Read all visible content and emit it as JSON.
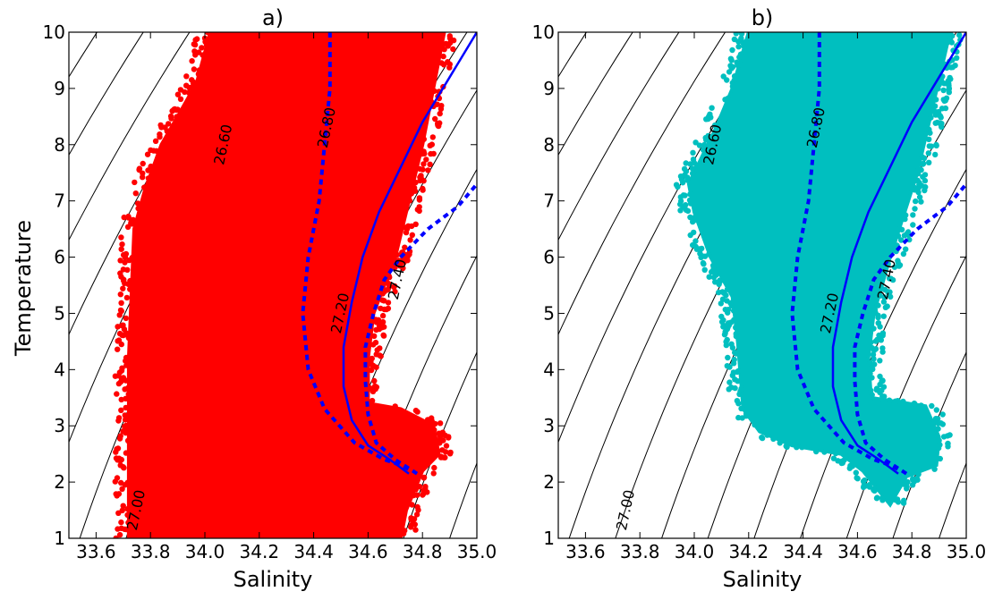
{
  "figure": {
    "ylabel": "Temperature",
    "xlabel": "Salinity"
  },
  "chart_data": [
    {
      "type": "scatter",
      "title": "a)",
      "xlabel": "Salinity",
      "ylabel": "Temperature",
      "xlim": [
        33.5,
        35.0
      ],
      "ylim": [
        1,
        10
      ],
      "xticks": [
        "33.6",
        "33.8",
        "34.0",
        "34.2",
        "34.4",
        "34.6",
        "34.8",
        "35.0"
      ],
      "yticks": [
        "1",
        "2",
        "3",
        "4",
        "5",
        "6",
        "7",
        "8",
        "9",
        "10"
      ],
      "grid": false,
      "scatter_color": "#ff0000",
      "scatter_envelope": [
        [
          33.72,
          1.0
        ],
        [
          33.72,
          4.2
        ],
        [
          33.74,
          6.5
        ],
        [
          33.78,
          7.2
        ],
        [
          33.84,
          8.0
        ],
        [
          33.9,
          8.5
        ],
        [
          33.97,
          9.1
        ],
        [
          34.02,
          10.0
        ],
        [
          34.88,
          10.0
        ],
        [
          34.8,
          8.0
        ],
        [
          34.7,
          6.0
        ],
        [
          34.62,
          5.0
        ],
        [
          34.6,
          4.2
        ],
        [
          34.6,
          3.4
        ],
        [
          34.72,
          3.3
        ],
        [
          34.84,
          3.0
        ],
        [
          34.86,
          2.5
        ],
        [
          34.8,
          2.2
        ],
        [
          34.74,
          1.5
        ],
        [
          34.72,
          1.0
        ]
      ],
      "lines": [
        {
          "style": "solid",
          "color": "#0000ff",
          "x": [
            34.75,
            34.68,
            34.6,
            34.54,
            34.51,
            34.51,
            34.54,
            34.58,
            34.64,
            34.72,
            34.8,
            34.9,
            35.0
          ],
          "y": [
            2.15,
            2.4,
            2.65,
            3.1,
            3.7,
            4.4,
            5.2,
            6.0,
            6.8,
            7.6,
            8.4,
            9.2,
            10.0
          ]
        },
        {
          "style": "dashed",
          "color": "#0000ff",
          "x": [
            34.46,
            34.46,
            34.44,
            34.42,
            34.38,
            34.36,
            34.38,
            34.44,
            34.55,
            34.66,
            34.72,
            34.76
          ],
          "y": [
            10.0,
            9.0,
            8.0,
            7.0,
            6.0,
            5.0,
            4.0,
            3.3,
            2.7,
            2.4,
            2.3,
            2.2
          ]
        },
        {
          "style": "dashed",
          "color": "#0000ff",
          "x": [
            34.78,
            34.7,
            34.63,
            34.6,
            34.59,
            34.59,
            34.62,
            34.66,
            34.72,
            34.82,
            34.93,
            35.0
          ],
          "y": [
            2.15,
            2.4,
            2.7,
            3.2,
            3.8,
            4.4,
            5.0,
            5.6,
            6.0,
            6.5,
            6.9,
            7.3
          ]
        }
      ],
      "density_contours": {
        "color": "#000000",
        "labels": [
          {
            "text": "26.60",
            "x": 34.07,
            "y": 8.0
          },
          {
            "text": "26.80",
            "x": 34.45,
            "y": 8.3
          },
          {
            "text": "27.20",
            "x": 34.5,
            "y": 5.0
          },
          {
            "text": "27.40",
            "x": 34.71,
            "y": 5.6
          },
          {
            "text": "27.00",
            "x": 33.75,
            "y": 1.5
          }
        ]
      }
    },
    {
      "type": "scatter",
      "title": "b)",
      "xlabel": "Salinity",
      "ylabel": "",
      "xlim": [
        33.5,
        35.0
      ],
      "ylim": [
        1,
        10
      ],
      "xticks": [
        "33.6",
        "33.8",
        "34.0",
        "34.2",
        "34.4",
        "34.6",
        "34.8",
        "35.0"
      ],
      "yticks": [
        "1",
        "2",
        "3",
        "4",
        "5",
        "6",
        "7",
        "8",
        "9",
        "10"
      ],
      "grid": false,
      "scatter_color": "#00bfbf",
      "scatter_envelope": [
        [
          33.98,
          7.3
        ],
        [
          34.08,
          8.3
        ],
        [
          34.14,
          9.0
        ],
        [
          34.2,
          10.0
        ],
        [
          34.94,
          10.0
        ],
        [
          34.82,
          7.5
        ],
        [
          34.72,
          6.0
        ],
        [
          34.66,
          5.0
        ],
        [
          34.64,
          4.2
        ],
        [
          34.65,
          3.5
        ],
        [
          34.85,
          3.35
        ],
        [
          34.9,
          2.8
        ],
        [
          34.89,
          2.3
        ],
        [
          34.78,
          2.1
        ],
        [
          34.72,
          1.6
        ],
        [
          34.62,
          2.2
        ],
        [
          34.54,
          2.5
        ],
        [
          34.36,
          2.65
        ],
        [
          34.24,
          2.9
        ],
        [
          34.18,
          3.3
        ],
        [
          34.16,
          4.5
        ],
        [
          34.14,
          5.3
        ],
        [
          34.06,
          6.0
        ],
        [
          34.0,
          6.8
        ]
      ],
      "lines": [
        {
          "style": "solid",
          "color": "#0000ff",
          "x": [
            34.75,
            34.68,
            34.6,
            34.54,
            34.51,
            34.51,
            34.54,
            34.58,
            34.64,
            34.72,
            34.8,
            34.9,
            35.0
          ],
          "y": [
            2.15,
            2.4,
            2.65,
            3.1,
            3.7,
            4.4,
            5.2,
            6.0,
            6.8,
            7.6,
            8.4,
            9.2,
            10.0
          ]
        },
        {
          "style": "dashed",
          "color": "#0000ff",
          "x": [
            34.46,
            34.46,
            34.44,
            34.42,
            34.38,
            34.36,
            34.38,
            34.44,
            34.55,
            34.66,
            34.72,
            34.76
          ],
          "y": [
            10.0,
            9.0,
            8.0,
            7.0,
            6.0,
            5.0,
            4.0,
            3.3,
            2.7,
            2.4,
            2.3,
            2.2
          ]
        },
        {
          "style": "dashed",
          "color": "#0000ff",
          "x": [
            34.78,
            34.7,
            34.63,
            34.6,
            34.59,
            34.59,
            34.62,
            34.66,
            34.72,
            34.82,
            34.93,
            35.0
          ],
          "y": [
            2.15,
            2.4,
            2.7,
            3.2,
            3.8,
            4.4,
            5.0,
            5.6,
            6.0,
            6.5,
            6.9,
            7.3
          ]
        }
      ],
      "density_contours": {
        "color": "#000000",
        "labels": [
          {
            "text": "26.60",
            "x": 34.07,
            "y": 8.0
          },
          {
            "text": "26.80",
            "x": 34.45,
            "y": 8.3
          },
          {
            "text": "27.20",
            "x": 34.5,
            "y": 5.0
          },
          {
            "text": "27.40",
            "x": 34.71,
            "y": 5.6
          },
          {
            "text": "27.00",
            "x": 33.75,
            "y": 1.5
          }
        ]
      }
    }
  ]
}
